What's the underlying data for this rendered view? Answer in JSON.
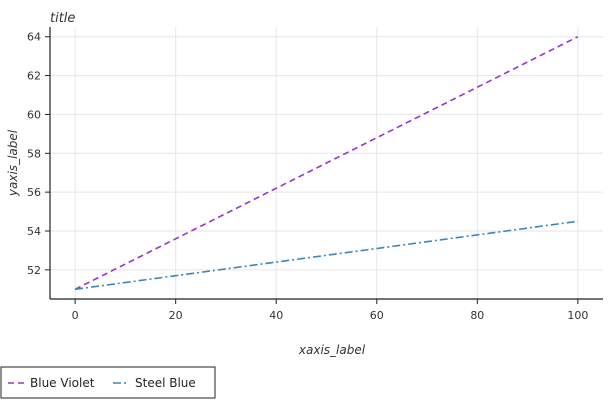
{
  "chart_data": {
    "type": "line",
    "title": "title",
    "xlabel": "xaxis_label",
    "ylabel": "yaxis_label",
    "x": [
      0,
      100
    ],
    "xlim": [
      -5,
      105
    ],
    "ylim": [
      50.5,
      64.5
    ],
    "xticks": [
      0,
      20,
      40,
      60,
      80,
      100
    ],
    "yticks": [
      52,
      54,
      56,
      58,
      60,
      62,
      64
    ],
    "grid": true,
    "legend_position": "bottom",
    "series": [
      {
        "name": "Blue Violet",
        "values": [
          51.0,
          64.0
        ],
        "color": "#9933cc",
        "dash": "dashed"
      },
      {
        "name": "Steel Blue",
        "values": [
          51.0,
          54.5
        ],
        "color": "#3d85b8",
        "dash": "dashdot"
      }
    ]
  }
}
